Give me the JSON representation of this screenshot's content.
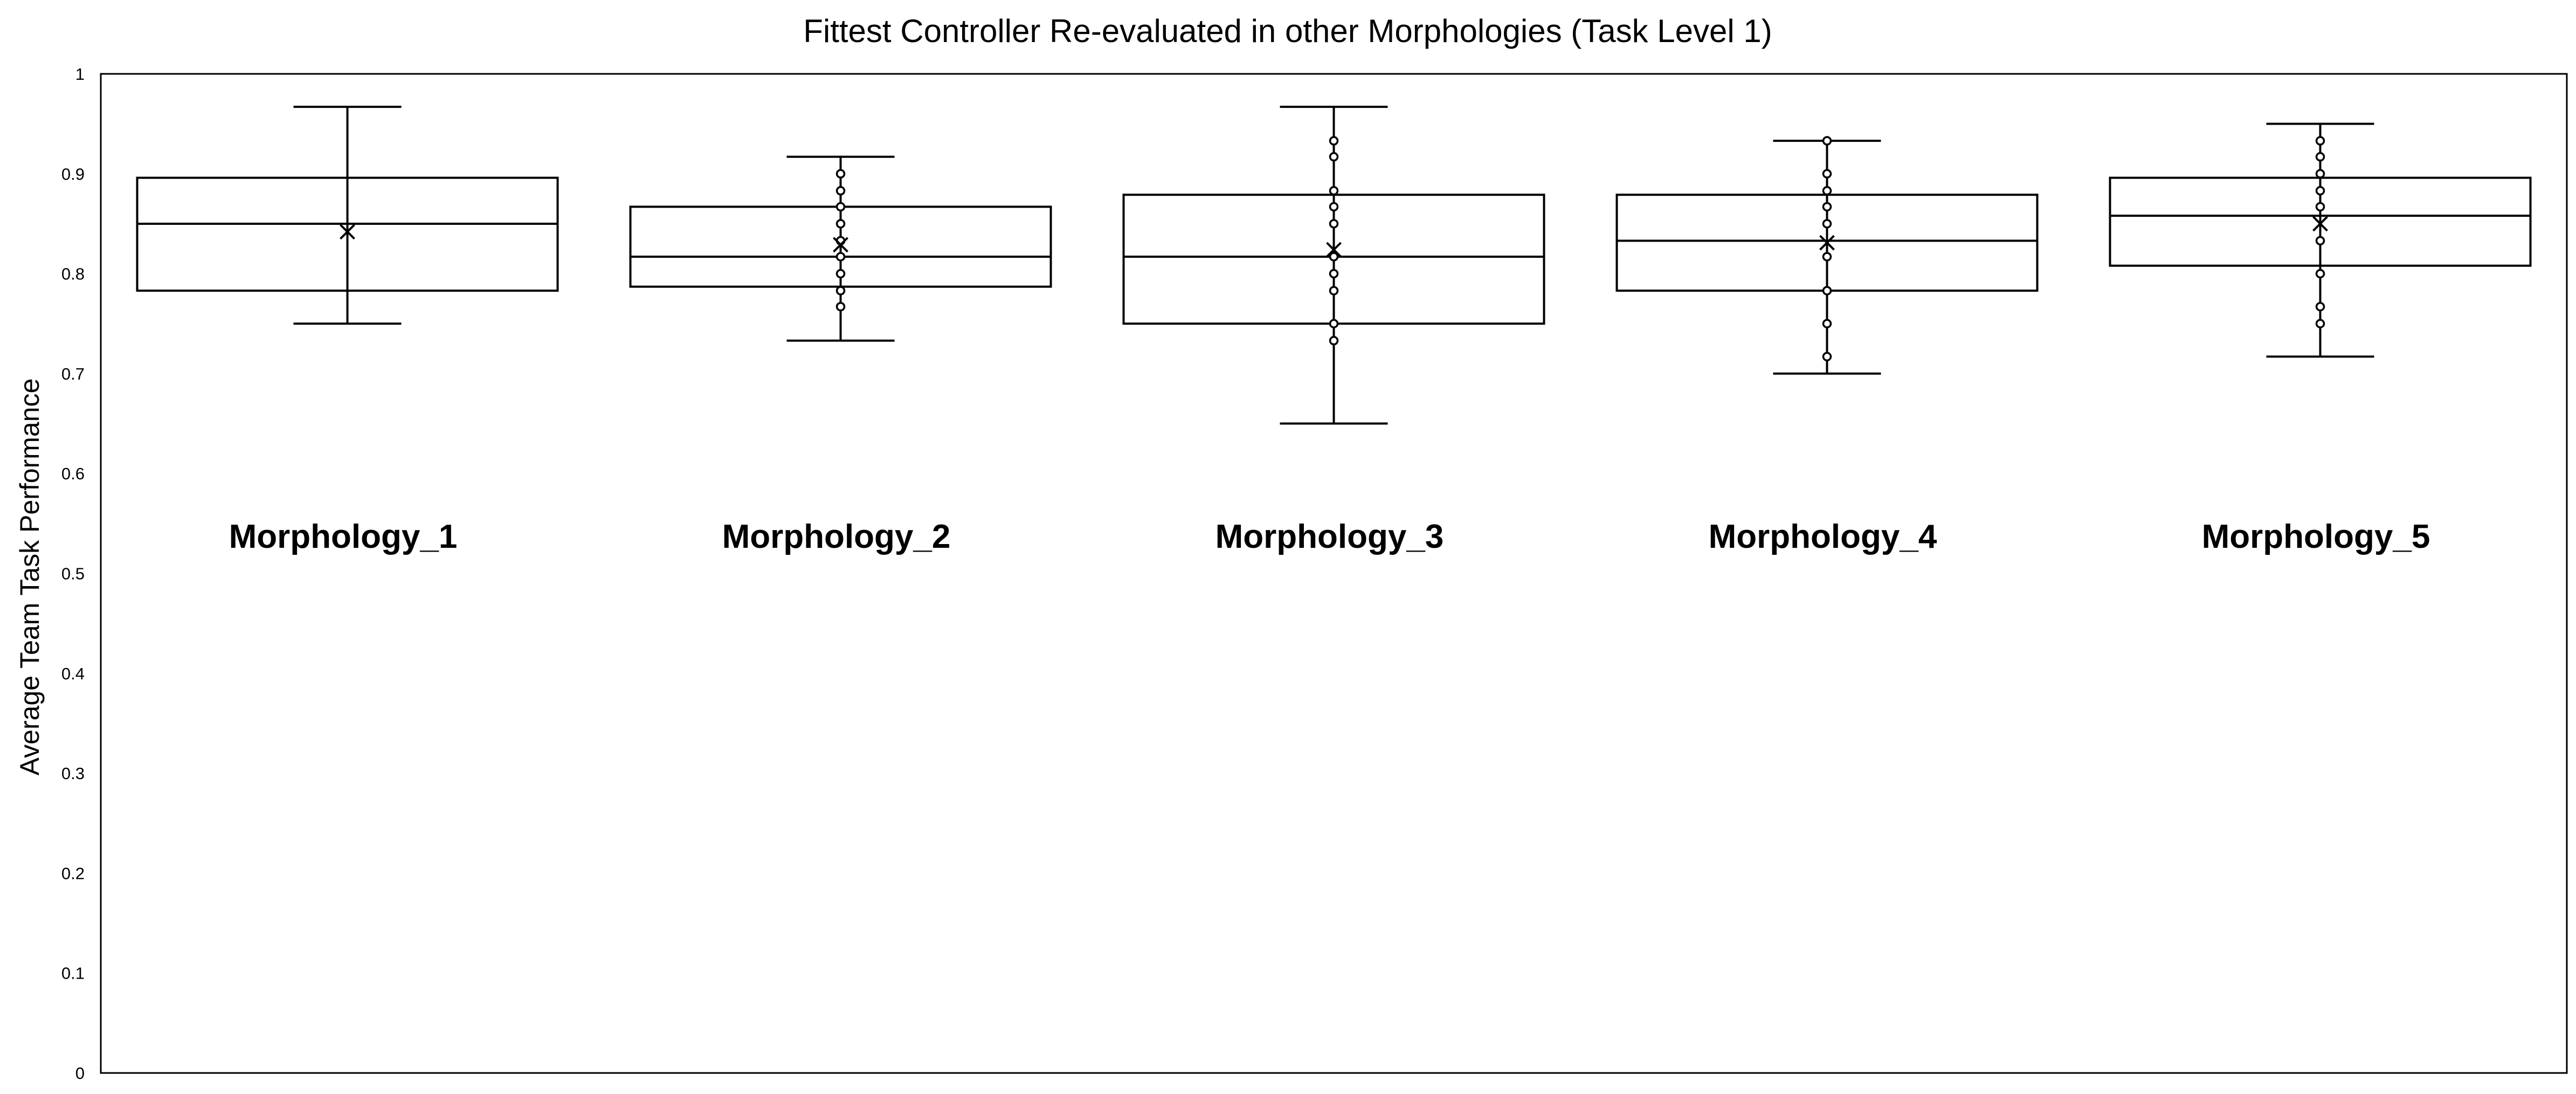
{
  "chart_data": {
    "type": "box",
    "title": "Fittest Controller Re-evaluated in other Morphologies (Task Level 1)",
    "xlabel": "",
    "ylabel": "Average Team Task Performance",
    "ylim": [
      0,
      1
    ],
    "yticks": [
      "0",
      "0.1",
      "0.2",
      "0.3",
      "0.4",
      "0.5",
      "0.6",
      "0.7",
      "0.8",
      "0.9",
      "1"
    ],
    "grid": false,
    "legend": "none",
    "categories": [
      "Morphology_1",
      "Morphology_2",
      "Morphology_3",
      "Morphology_4",
      "Morphology_5"
    ],
    "boxes": [
      {
        "category": "Morphology_1",
        "min": 0.75,
        "q1": 0.783,
        "median": 0.85,
        "q3": 0.896,
        "max": 0.967,
        "mean": 0.842,
        "points": []
      },
      {
        "category": "Morphology_2",
        "min": 0.733,
        "q1": 0.787,
        "median": 0.817,
        "q3": 0.867,
        "max": 0.917,
        "mean": 0.829,
        "points": [
          0.767,
          0.783,
          0.8,
          0.817,
          0.833,
          0.85,
          0.867,
          0.883,
          0.9
        ]
      },
      {
        "category": "Morphology_3",
        "min": 0.65,
        "q1": 0.75,
        "median": 0.817,
        "q3": 0.879,
        "max": 0.967,
        "mean": 0.824,
        "points": [
          0.733,
          0.75,
          0.783,
          0.8,
          0.817,
          0.85,
          0.867,
          0.883,
          0.917,
          0.933
        ]
      },
      {
        "category": "Morphology_4",
        "min": 0.7,
        "q1": 0.783,
        "median": 0.833,
        "q3": 0.879,
        "max": 0.933,
        "mean": 0.831,
        "points": [
          0.717,
          0.75,
          0.783,
          0.817,
          0.85,
          0.867,
          0.883,
          0.9,
          0.933
        ]
      },
      {
        "category": "Morphology_5",
        "min": 0.717,
        "q1": 0.808,
        "median": 0.858,
        "q3": 0.896,
        "max": 0.95,
        "mean": 0.85,
        "points": [
          0.75,
          0.767,
          0.8,
          0.833,
          0.867,
          0.883,
          0.9,
          0.917,
          0.933
        ]
      }
    ]
  }
}
